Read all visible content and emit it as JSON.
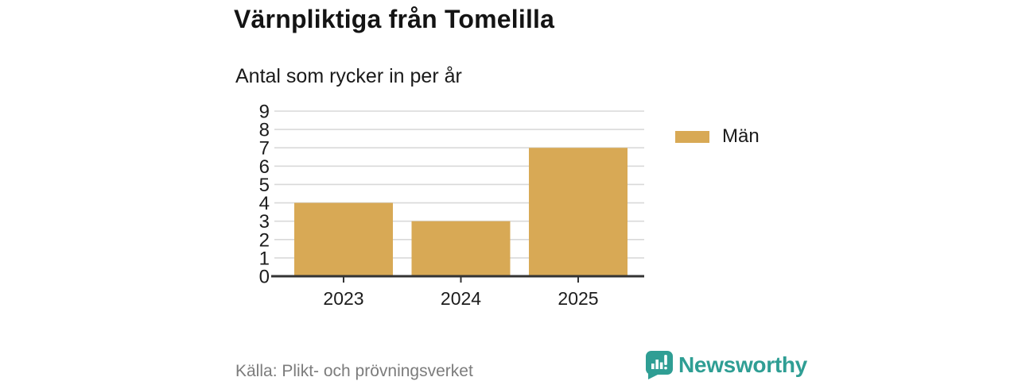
{
  "chart_data": {
    "type": "bar",
    "title": "Värnpliktiga från Tomelilla",
    "subtitle": "Antal som rycker in per år",
    "categories": [
      "2023",
      "2024",
      "2025"
    ],
    "series": [
      {
        "name": "Män",
        "color": "#d8a955",
        "values": [
          4,
          3,
          7
        ]
      }
    ],
    "ylim": [
      0,
      9
    ],
    "yticks": [
      0,
      1,
      2,
      3,
      4,
      5,
      6,
      7,
      8,
      9
    ],
    "grid": true,
    "legend_position": "right"
  },
  "footer": {
    "source": "Källa: Plikt- och prövningsverket",
    "brand": "Newsworthy"
  },
  "colors": {
    "bar": "#d8a955",
    "grid": "#d9d9d9",
    "axis": "#333333",
    "brand_teal": "#2f9e94",
    "title_text": "#141414",
    "muted_text": "#7c7c7c"
  }
}
